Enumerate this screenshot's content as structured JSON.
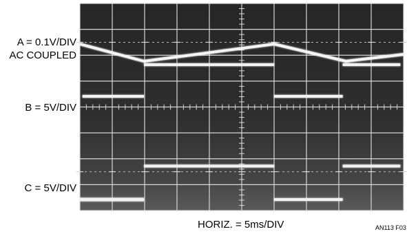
{
  "chart_data": {
    "type": "line",
    "title": "",
    "xlabel": "HORIZ. = 5ms/DIV",
    "figure_id": "AN113 F03",
    "divisions": {
      "x": 10,
      "y": 8
    },
    "grid": true,
    "x_units": "ms",
    "xlim": [
      0,
      50
    ],
    "series": [
      {
        "name": "A = 0.1V/DIV",
        "coupling": "AC COUPLED",
        "scale": "0.1V/DIV",
        "x": [
          0,
          9.9,
          30,
          41.1,
          50
        ],
        "y": [
          0.03,
          -0.02,
          0.03,
          -0.02,
          0.0
        ]
      },
      {
        "name": "B = 5V/DIV",
        "scale": "5V/DIV",
        "x": [
          0.4,
          9.9,
          9.9,
          30,
          30,
          40.6,
          40.6,
          49.5
        ],
        "y": [
          0,
          0,
          -5,
          -5,
          0,
          0,
          -5,
          -5
        ]
      },
      {
        "name": "C = 5V/DIV",
        "scale": "5V/DIV",
        "x": [
          0,
          9.9,
          9.9,
          30,
          30,
          40.6,
          40.6,
          49.5
        ],
        "y": [
          0,
          0,
          6,
          6,
          0,
          0,
          6,
          6
        ]
      }
    ]
  }
}
